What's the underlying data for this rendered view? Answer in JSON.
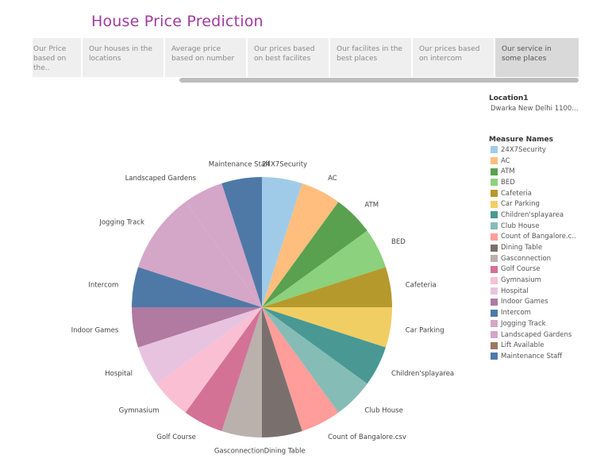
{
  "title": "House Price Prediction",
  "tabs": [
    {
      "label": "Our Price based on the..",
      "active": false
    },
    {
      "label": "Our houses in the locations",
      "active": false
    },
    {
      "label": "Average price based on number",
      "active": false
    },
    {
      "label": "Our prices based on best  facilites",
      "active": false
    },
    {
      "label": "Our facilites in the best places",
      "active": false
    },
    {
      "label": "Our prices based on intercom",
      "active": false
    },
    {
      "label": "Our service in some places",
      "active": true
    }
  ],
  "filter": {
    "title": "Location1",
    "value": "Dwarka New Delhi 1100..."
  },
  "legend_title": "Measure Names",
  "chart_data": {
    "type": "pie",
    "categories": [
      "24X7Security",
      "AC",
      "ATM",
      "BED",
      "Cafeteria",
      "Car Parking",
      "Children'splayarea",
      "Club House",
      "Count of Bangalore.csv",
      "Dining Table",
      "Gasconnection",
      "Golf Course",
      "Gymnasium",
      "Hospital",
      "Indoor Games",
      "Intercom",
      "Jogging Track",
      "Landscaped Gardens",
      "Lift Available",
      "Maintenance Staff"
    ],
    "legend_labels": [
      "24X7Security",
      "AC",
      "ATM",
      "BED",
      "Cafeteria",
      "Car Parking",
      "Children'splayarea",
      "Club House",
      "Count of Bangalore.c..",
      "Dining Table",
      "Gasconnection",
      "Golf Course",
      "Gymnasium",
      "Hospital",
      "Indoor Games",
      "Intercom",
      "Jogging Track",
      "Landscaped Gardens",
      "Lift Available",
      "Maintenance Staff"
    ],
    "values": [
      1,
      1,
      1,
      1,
      1,
      1,
      1,
      1,
      1,
      1,
      1,
      1,
      1,
      1,
      1,
      1,
      2,
      1,
      0,
      1
    ],
    "colors": [
      "#a0cbe8",
      "#ffbe7d",
      "#59a14f",
      "#8cd17d",
      "#b6992d",
      "#f1ce63",
      "#499894",
      "#86bcb6",
      "#ff9d9a",
      "#79706e",
      "#bab0ac",
      "#d37295",
      "#fabfd2",
      "#e8c3e0",
      "#b07aa1",
      "#4e79a7",
      "#d4a6c8",
      "#d4a6c8",
      "#9d7660",
      "#4e79a7"
    ],
    "slice_colors": [
      "#a0cbe8",
      "#ffbe7d",
      "#59a14f",
      "#8cd17d",
      "#b6992d",
      "#f1ce63",
      "#499894",
      "#86bcb6",
      "#ff9d9a",
      "#79706e",
      "#bab0ac",
      "#d37295",
      "#fabfd2",
      "#e8c3e0",
      "#b07aa1",
      "#4e79a7",
      "#d4a6c8",
      "#d4a6c8",
      "#9d7660",
      "#4e79a7"
    ],
    "start": "12 o'clock, clockwise",
    "legend_position": "right"
  }
}
